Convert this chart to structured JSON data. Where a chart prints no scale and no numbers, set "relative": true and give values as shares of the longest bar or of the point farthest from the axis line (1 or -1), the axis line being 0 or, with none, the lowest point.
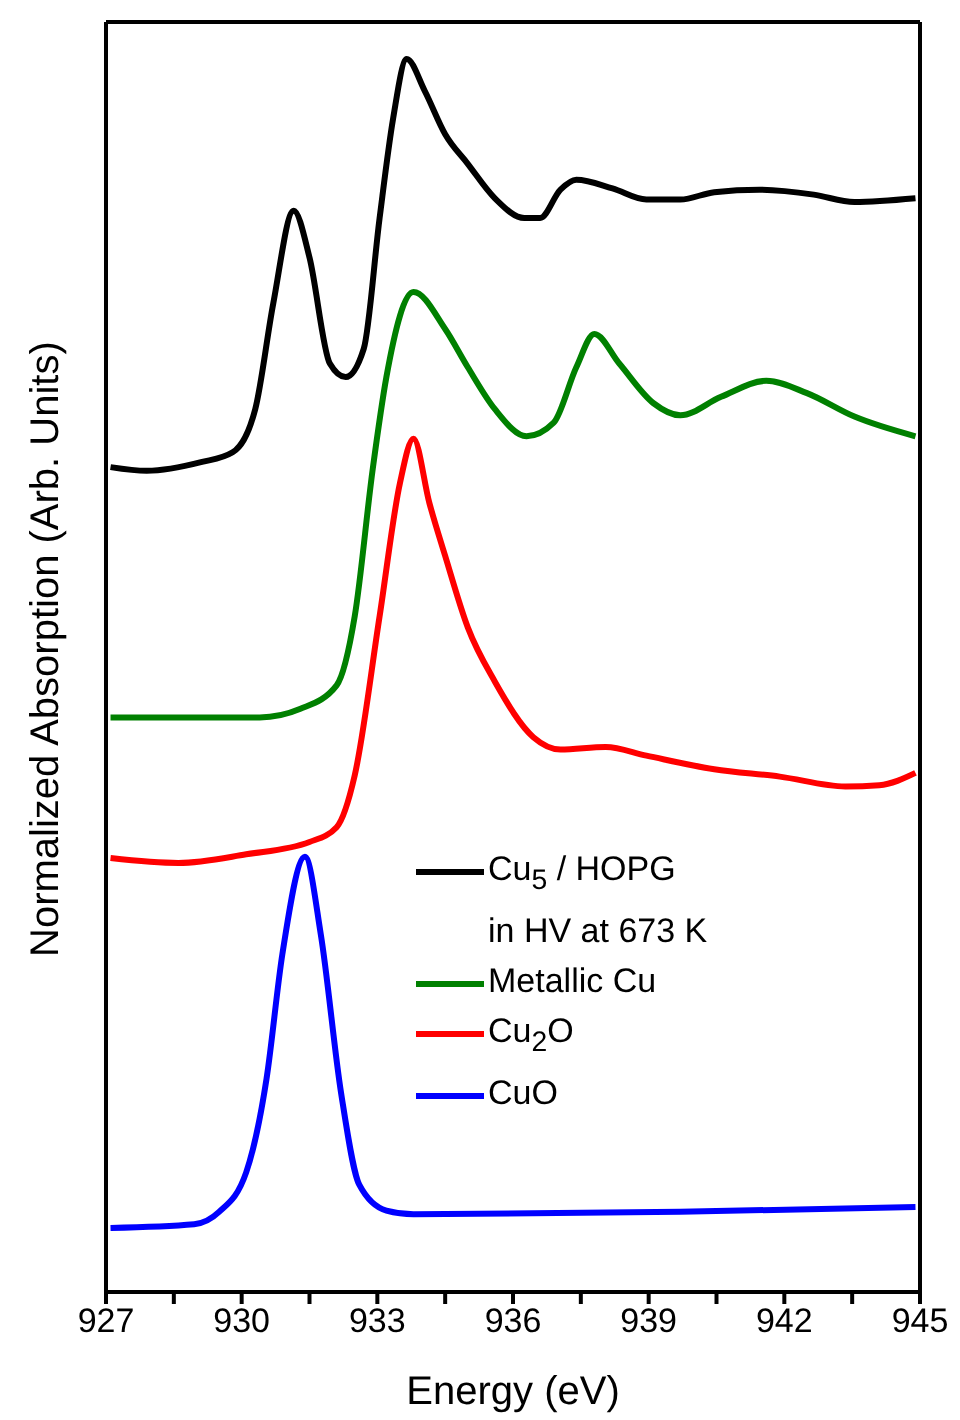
{
  "chart_data": {
    "type": "line",
    "relative": true,
    "xlabel": "Energy (eV)",
    "ylabel": "Normalized Absorption (Arb. Units)",
    "xlim": [
      927,
      945
    ],
    "xticks": [
      927,
      {
        "value": 928.5,
        "label": null
      },
      930,
      {
        "value": 931.5,
        "label": null
      },
      933,
      {
        "value": 934.5,
        "label": null
      },
      936,
      {
        "value": 937.5,
        "label": null
      },
      939,
      {
        "value": 940.5,
        "label": null
      },
      942,
      {
        "value": 943.5,
        "label": null
      },
      945
    ],
    "legend": "bottom right",
    "marker": "none",
    "line_style": "solid",
    "series": [
      {
        "name": "Cu$_{5}$ / HOPG\nin HV at 673 K",
        "color": "#000000",
        "x": [
          927.1,
          927.9,
          929.1,
          929.8,
          930.3,
          930.7,
          931.15,
          931.5,
          931.95,
          932.3,
          932.7,
          933.05,
          933.35,
          933.65,
          934.05,
          934.5,
          935.0,
          935.6,
          936.25,
          936.6,
          937.05,
          937.4,
          938.2,
          938.95,
          939.7,
          940.45,
          941.45,
          942.65,
          943.55,
          944.9
        ],
        "values": [
          0.669,
          0.666,
          0.673,
          0.681,
          0.716,
          0.802,
          0.877,
          0.839,
          0.753,
          0.742,
          0.765,
          0.871,
          0.952,
          1.0,
          0.974,
          0.939,
          0.915,
          0.887,
          0.871,
          0.871,
          0.894,
          0.902,
          0.895,
          0.886,
          0.886,
          0.892,
          0.894,
          0.89,
          0.884,
          0.887
        ]
      },
      {
        "name": "Metallic Cu",
        "color": "#008000",
        "x": [
          927.1,
          930.4,
          931.3,
          932.1,
          932.5,
          932.9,
          933.2,
          933.8,
          934.5,
          935.0,
          935.6,
          936.3,
          936.9,
          937.4,
          937.8,
          938.35,
          939.1,
          939.7,
          940.6,
          941.6,
          942.5,
          943.55,
          944.9
        ],
        "values": [
          0.466,
          0.466,
          0.473,
          0.492,
          0.548,
          0.668,
          0.742,
          0.811,
          0.781,
          0.75,
          0.716,
          0.694,
          0.705,
          0.75,
          0.777,
          0.753,
          0.721,
          0.711,
          0.726,
          0.739,
          0.729,
          0.71,
          0.694
        ]
      },
      {
        "name": "Cu$_{2}$O",
        "color": "#ff0000",
        "x": [
          927.1,
          928.6,
          930.1,
          931.5,
          932.1,
          932.5,
          933.05,
          933.5,
          933.8,
          934.15,
          934.5,
          935.0,
          935.6,
          936.45,
          937.05,
          938.05,
          938.95,
          940.45,
          941.9,
          943.35,
          944.1,
          944.9
        ],
        "values": [
          0.352,
          0.348,
          0.355,
          0.365,
          0.377,
          0.419,
          0.548,
          0.656,
          0.692,
          0.64,
          0.597,
          0.539,
          0.495,
          0.45,
          0.44,
          0.442,
          0.435,
          0.424,
          0.418,
          0.41,
          0.411,
          0.421
        ]
      },
      {
        "name": "CuO",
        "color": "#0000ff",
        "x": [
          927.1,
          928.95,
          929.5,
          930.1,
          930.55,
          930.9,
          931.4,
          931.75,
          932.2,
          932.6,
          933.2,
          933.8,
          939.7,
          944.9
        ],
        "values": [
          0.052,
          0.055,
          0.065,
          0.097,
          0.173,
          0.274,
          0.353,
          0.29,
          0.161,
          0.087,
          0.066,
          0.063,
          0.065,
          0.069
        ]
      }
    ]
  }
}
